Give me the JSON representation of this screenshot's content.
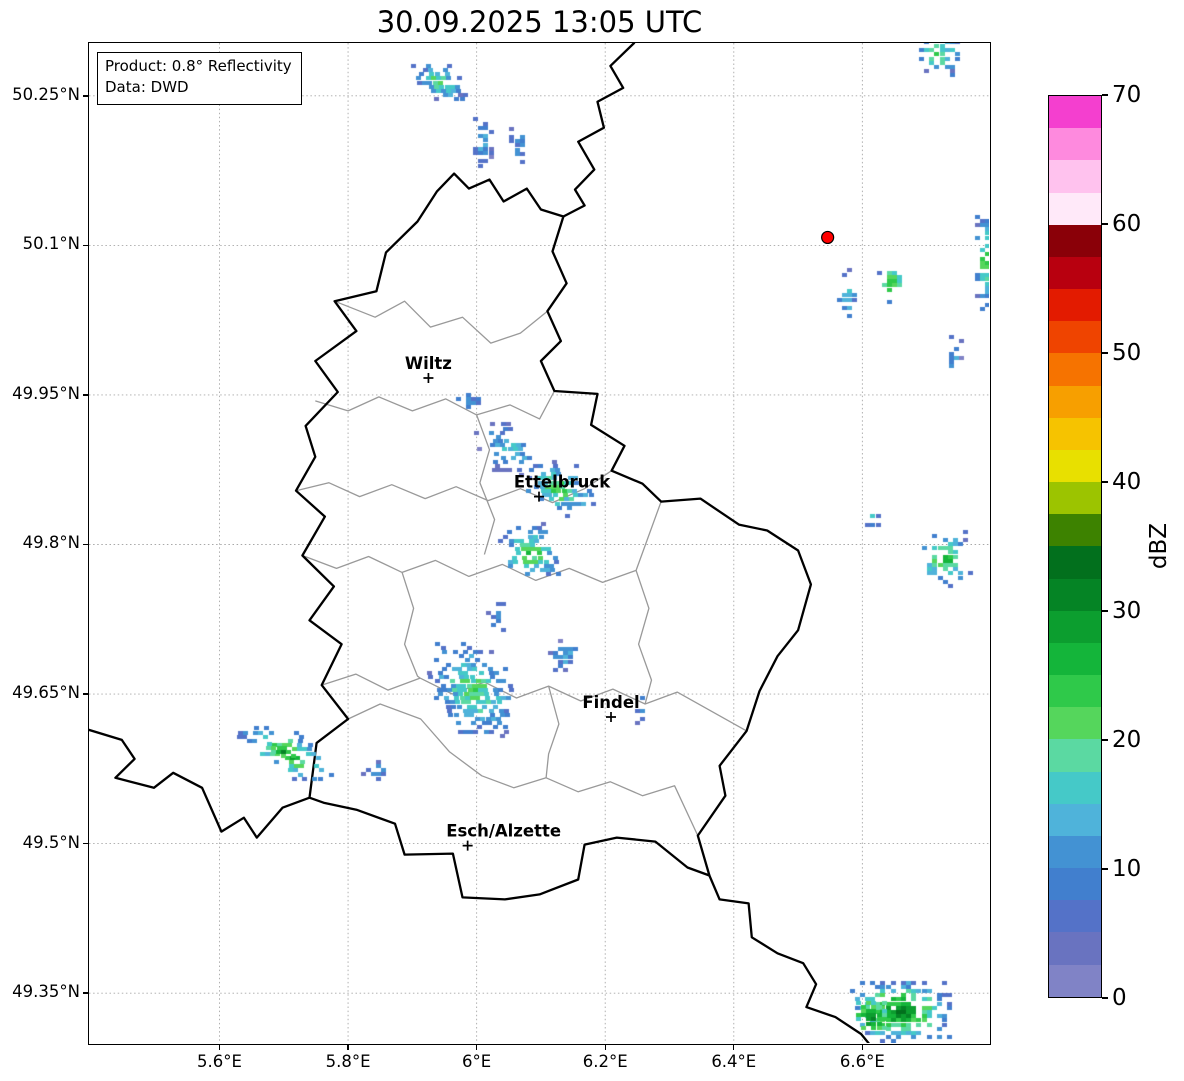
{
  "title": "30.09.2025 13:05 UTC",
  "legend": {
    "line1": "Product: 0.8° Reflectivity",
    "line2": "Data: DWD"
  },
  "colorbar": {
    "label": "dBZ",
    "min": 0,
    "max": 70,
    "band_dbz": 2.5,
    "ticks": [
      0,
      10,
      20,
      30,
      40,
      50,
      60,
      70
    ],
    "colors": [
      "#8083c6",
      "#6973c0",
      "#5472c8",
      "#417fce",
      "#4392d3",
      "#4fb3da",
      "#45c9c8",
      "#5bd9a2",
      "#55d65c",
      "#2fc94a",
      "#14b53a",
      "#0c9e2f",
      "#058425",
      "#02701d",
      "#3d8200",
      "#9cc400",
      "#e8e000",
      "#f6c300",
      "#f79f00",
      "#f67300",
      "#ef4400",
      "#e31b00",
      "#b8000f",
      "#8a0008",
      "#ffe9f9",
      "#ffc2ee",
      "#fe8ade",
      "#f43fcf"
    ]
  },
  "axes": {
    "extent": {
      "lon_min": 5.397,
      "lon_max": 6.797,
      "lat_min": 49.3,
      "lat_max": 50.303
    },
    "lat_ticks": [
      {
        "label": "50.25°N",
        "value": 50.25
      },
      {
        "label": "50.1°N",
        "value": 50.1
      },
      {
        "label": "49.95°N",
        "value": 49.95
      },
      {
        "label": "49.8°N",
        "value": 49.8
      },
      {
        "label": "49.65°N",
        "value": 49.65
      },
      {
        "label": "49.5°N",
        "value": 49.5
      },
      {
        "label": "49.35°N",
        "value": 49.35
      }
    ],
    "lon_ticks": [
      {
        "label": "5.6°E",
        "value": 5.6
      },
      {
        "label": "5.8°E",
        "value": 5.8
      },
      {
        "label": "6°E",
        "value": 6.0
      },
      {
        "label": "6.2°E",
        "value": 6.2
      },
      {
        "label": "6.4°E",
        "value": 6.4
      },
      {
        "label": "6.6°E",
        "value": 6.6
      }
    ]
  },
  "map": {
    "cities": [
      {
        "name": "Wiltz",
        "lon": 5.925,
        "lat": 49.967,
        "label_dx": 0
      },
      {
        "name": "Ettelbruck",
        "lon": 6.097,
        "lat": 49.848,
        "label_dx": 23
      },
      {
        "name": "Findel",
        "lon": 6.209,
        "lat": 49.627,
        "label_dx": 0
      },
      {
        "name": "Esch/Alzette",
        "lon": 5.986,
        "lat": 49.498,
        "label_dx": 36
      }
    ],
    "radar_site": {
      "lon": 6.546,
      "lat": 50.108,
      "color": "#ff0000"
    },
    "borders": {
      "country": [
        [
          5.965,
          50.172
        ],
        [
          5.988,
          50.157
        ],
        [
          6.02,
          50.166
        ],
        [
          6.042,
          50.144
        ],
        [
          6.078,
          50.157
        ],
        [
          6.1,
          50.136
        ],
        [
          6.135,
          50.129
        ],
        [
          6.118,
          50.094
        ],
        [
          6.14,
          50.062
        ],
        [
          6.11,
          50.034
        ],
        [
          6.131,
          50.004
        ],
        [
          6.1,
          49.984
        ],
        [
          6.121,
          49.954
        ],
        [
          6.188,
          49.951
        ],
        [
          6.178,
          49.92
        ],
        [
          6.23,
          49.899
        ],
        [
          6.21,
          49.874
        ],
        [
          6.258,
          49.861
        ],
        [
          6.287,
          49.843
        ],
        [
          6.348,
          49.846
        ],
        [
          6.408,
          49.82
        ],
        [
          6.452,
          49.814
        ],
        [
          6.5,
          49.794
        ],
        [
          6.52,
          49.76
        ],
        [
          6.5,
          49.714
        ],
        [
          6.468,
          49.688
        ],
        [
          6.44,
          49.653
        ],
        [
          6.42,
          49.613
        ],
        [
          6.378,
          49.578
        ],
        [
          6.387,
          49.548
        ],
        [
          6.344,
          49.508
        ],
        [
          6.362,
          49.468
        ],
        [
          6.328,
          49.476
        ],
        [
          6.278,
          49.502
        ],
        [
          6.218,
          49.506
        ],
        [
          6.168,
          49.499
        ],
        [
          6.158,
          49.464
        ],
        [
          6.098,
          49.449
        ],
        [
          6.044,
          49.444
        ],
        [
          5.978,
          49.446
        ],
        [
          5.963,
          49.49
        ],
        [
          5.888,
          49.489
        ],
        [
          5.873,
          49.52
        ],
        [
          5.813,
          49.534
        ],
        [
          5.762,
          49.541
        ],
        [
          5.74,
          49.546
        ],
        [
          5.751,
          49.601
        ],
        [
          5.8,
          49.625
        ],
        [
          5.759,
          49.659
        ],
        [
          5.79,
          49.7
        ],
        [
          5.74,
          49.724
        ],
        [
          5.778,
          49.758
        ],
        [
          5.729,
          49.789
        ],
        [
          5.764,
          49.828
        ],
        [
          5.719,
          49.854
        ],
        [
          5.749,
          49.888
        ],
        [
          5.734,
          49.919
        ],
        [
          5.784,
          49.953
        ],
        [
          5.749,
          49.984
        ],
        [
          5.813,
          50.014
        ],
        [
          5.779,
          50.044
        ],
        [
          5.844,
          50.054
        ],
        [
          5.859,
          50.093
        ],
        [
          5.908,
          50.124
        ],
        [
          5.938,
          50.154
        ]
      ],
      "other": [
        [
          [
            6.245,
            50.303
          ],
          [
            6.208,
            50.28
          ],
          [
            6.228,
            50.258
          ],
          [
            6.188,
            50.244
          ],
          [
            6.198,
            50.218
          ],
          [
            6.158,
            50.204
          ],
          [
            6.183,
            50.176
          ],
          [
            6.153,
            50.156
          ],
          [
            6.168,
            50.14
          ],
          [
            6.135,
            50.129
          ]
        ],
        [
          [
            5.397,
            49.614
          ],
          [
            5.448,
            49.604
          ],
          [
            5.468,
            49.585
          ],
          [
            5.438,
            49.566
          ],
          [
            5.498,
            49.556
          ],
          [
            5.528,
            49.571
          ],
          [
            5.573,
            49.556
          ],
          [
            5.603,
            49.512
          ],
          [
            5.638,
            49.526
          ],
          [
            5.658,
            49.506
          ],
          [
            5.698,
            49.536
          ],
          [
            5.74,
            49.546
          ]
        ],
        [
          [
            6.362,
            49.468
          ],
          [
            6.378,
            49.444
          ],
          [
            6.423,
            49.44
          ],
          [
            6.428,
            49.406
          ],
          [
            6.468,
            49.39
          ],
          [
            6.508,
            49.38
          ],
          [
            6.528,
            49.359
          ],
          [
            6.513,
            49.336
          ],
          [
            6.558,
            49.326
          ],
          [
            6.598,
            49.309
          ],
          [
            6.612,
            49.298
          ]
        ]
      ],
      "districts": [
        [
          [
            5.779,
            50.044
          ],
          [
            5.842,
            50.028
          ],
          [
            5.888,
            50.044
          ],
          [
            5.928,
            50.018
          ],
          [
            5.978,
            50.028
          ],
          [
            6.022,
            50.002
          ],
          [
            6.068,
            50.012
          ],
          [
            6.11,
            50.034
          ]
        ],
        [
          [
            5.749,
            49.944
          ],
          [
            5.8,
            49.934
          ],
          [
            5.848,
            49.948
          ],
          [
            5.9,
            49.934
          ],
          [
            5.952,
            49.946
          ],
          [
            6.0,
            49.93
          ],
          [
            6.052,
            49.94
          ],
          [
            6.098,
            49.926
          ],
          [
            6.121,
            49.954
          ]
        ],
        [
          [
            5.719,
            49.854
          ],
          [
            5.77,
            49.862
          ],
          [
            5.818,
            49.848
          ],
          [
            5.868,
            49.86
          ],
          [
            5.92,
            49.846
          ],
          [
            5.968,
            49.858
          ],
          [
            6.018,
            49.844
          ],
          [
            6.068,
            49.856
          ],
          [
            6.118,
            49.842
          ],
          [
            6.168,
            49.856
          ],
          [
            6.21,
            49.874
          ]
        ],
        [
          [
            5.729,
            49.789
          ],
          [
            5.782,
            49.776
          ],
          [
            5.832,
            49.788
          ],
          [
            5.884,
            49.772
          ],
          [
            5.936,
            49.784
          ],
          [
            5.988,
            49.768
          ],
          [
            6.04,
            49.78
          ],
          [
            6.092,
            49.764
          ],
          [
            6.144,
            49.776
          ],
          [
            6.196,
            49.762
          ],
          [
            6.248,
            49.774
          ],
          [
            6.287,
            49.843
          ]
        ],
        [
          [
            5.759,
            49.659
          ],
          [
            5.812,
            49.67
          ],
          [
            5.862,
            49.654
          ],
          [
            5.912,
            49.666
          ],
          [
            5.962,
            49.65
          ],
          [
            6.012,
            49.662
          ],
          [
            6.062,
            49.646
          ],
          [
            6.112,
            49.658
          ],
          [
            6.162,
            49.643
          ],
          [
            6.212,
            49.655
          ],
          [
            6.262,
            49.64
          ],
          [
            6.312,
            49.652
          ],
          [
            6.42,
            49.613
          ]
        ],
        [
          [
            5.8,
            49.625
          ],
          [
            5.85,
            49.64
          ],
          [
            5.913,
            49.625
          ],
          [
            5.958,
            49.592
          ],
          [
            6.008,
            49.568
          ],
          [
            6.058,
            49.556
          ],
          [
            6.108,
            49.566
          ],
          [
            6.158,
            49.552
          ],
          [
            6.208,
            49.562
          ],
          [
            6.258,
            49.548
          ],
          [
            6.308,
            49.558
          ],
          [
            6.344,
            49.508
          ]
        ],
        [
          [
            6.0,
            49.93
          ],
          [
            6.02,
            49.895
          ],
          [
            6.005,
            49.862
          ],
          [
            6.028,
            49.825
          ],
          [
            6.012,
            49.79
          ]
        ],
        [
          [
            6.248,
            49.774
          ],
          [
            6.268,
            49.736
          ],
          [
            6.252,
            49.7
          ],
          [
            6.272,
            49.664
          ],
          [
            6.262,
            49.64
          ]
        ],
        [
          [
            5.884,
            49.772
          ],
          [
            5.902,
            49.736
          ],
          [
            5.888,
            49.7
          ],
          [
            5.908,
            49.668
          ],
          [
            5.912,
            49.666
          ]
        ],
        [
          [
            6.112,
            49.658
          ],
          [
            6.128,
            49.62
          ],
          [
            6.112,
            49.59
          ],
          [
            6.108,
            49.566
          ]
        ]
      ]
    }
  },
  "chart_data": {
    "type": "radar_reflectivity_map",
    "unit": "dBZ",
    "echoes": [
      {
        "lon": 5.945,
        "lat": 50.263,
        "w": 0.075,
        "h": 0.038,
        "dbz_min": 6,
        "dbz_max": 22,
        "density": 1.1,
        "seed": 1,
        "skew": 0.3
      },
      {
        "lon": 6.012,
        "lat": 50.205,
        "w": 0.035,
        "h": 0.055,
        "dbz_min": 4,
        "dbz_max": 14,
        "density": 1.0,
        "seed": 2,
        "skew": 0
      },
      {
        "lon": 6.065,
        "lat": 50.198,
        "w": 0.028,
        "h": 0.042,
        "dbz_min": 4,
        "dbz_max": 12,
        "density": 0.95,
        "seed": 3,
        "skew": 0
      },
      {
        "lon": 6.718,
        "lat": 50.292,
        "w": 0.06,
        "h": 0.045,
        "dbz_min": 6,
        "dbz_max": 24,
        "density": 1.0,
        "seed": 4,
        "skew": 0
      },
      {
        "lon": 6.792,
        "lat": 50.085,
        "w": 0.035,
        "h": 0.1,
        "dbz_min": 6,
        "dbz_max": 27,
        "density": 1.0,
        "seed": 5,
        "skew": 0
      },
      {
        "lon": 6.578,
        "lat": 50.052,
        "w": 0.035,
        "h": 0.05,
        "dbz_min": 6,
        "dbz_max": 20,
        "density": 0.9,
        "seed": 6,
        "skew": 0
      },
      {
        "lon": 6.645,
        "lat": 50.062,
        "w": 0.045,
        "h": 0.05,
        "dbz_min": 6,
        "dbz_max": 26,
        "density": 0.9,
        "seed": 7,
        "skew": 0
      },
      {
        "lon": 6.742,
        "lat": 49.992,
        "w": 0.03,
        "h": 0.045,
        "dbz_min": 4,
        "dbz_max": 12,
        "density": 0.9,
        "seed": 8,
        "skew": 0
      },
      {
        "lon": 5.99,
        "lat": 49.944,
        "w": 0.045,
        "h": 0.025,
        "dbz_min": 4,
        "dbz_max": 12,
        "density": 0.9,
        "seed": 9,
        "skew": 0
      },
      {
        "lon": 6.05,
        "lat": 49.895,
        "w": 0.1,
        "h": 0.055,
        "dbz_min": 4,
        "dbz_max": 16,
        "density": 0.85,
        "seed": 10,
        "skew": 0.4
      },
      {
        "lon": 6.125,
        "lat": 49.855,
        "w": 0.1,
        "h": 0.06,
        "dbz_min": 6,
        "dbz_max": 24,
        "density": 0.95,
        "seed": 11,
        "skew": 0.3
      },
      {
        "lon": 6.085,
        "lat": 49.79,
        "w": 0.095,
        "h": 0.065,
        "dbz_min": 6,
        "dbz_max": 25,
        "density": 0.95,
        "seed": 12,
        "skew": 0.2
      },
      {
        "lon": 6.028,
        "lat": 49.732,
        "w": 0.028,
        "h": 0.045,
        "dbz_min": 4,
        "dbz_max": 12,
        "density": 0.9,
        "seed": 13,
        "skew": 0
      },
      {
        "lon": 5.995,
        "lat": 49.655,
        "w": 0.13,
        "h": 0.095,
        "dbz_min": 6,
        "dbz_max": 23,
        "density": 1.0,
        "seed": 14,
        "skew": 0.3
      },
      {
        "lon": 6.135,
        "lat": 49.688,
        "w": 0.065,
        "h": 0.035,
        "dbz_min": 4,
        "dbz_max": 14,
        "density": 0.85,
        "seed": 15,
        "skew": 0
      },
      {
        "lon": 6.252,
        "lat": 49.634,
        "w": 0.028,
        "h": 0.028,
        "dbz_min": 4,
        "dbz_max": 11,
        "density": 0.9,
        "seed": 16,
        "skew": 0
      },
      {
        "lon": 5.705,
        "lat": 49.59,
        "w": 0.1,
        "h": 0.055,
        "dbz_min": 8,
        "dbz_max": 30,
        "density": 0.95,
        "seed": 17,
        "skew": 0.9
      },
      {
        "lon": 5.7,
        "lat": 49.592,
        "w": 0.04,
        "h": 0.02,
        "dbz_min": 15,
        "dbz_max": 28,
        "density": 1.1,
        "seed": 23,
        "skew": 0.9
      },
      {
        "lon": 5.845,
        "lat": 49.573,
        "w": 0.05,
        "h": 0.022,
        "dbz_min": 4,
        "dbz_max": 12,
        "density": 0.9,
        "seed": 18,
        "skew": 0
      },
      {
        "lon": 6.66,
        "lat": 49.33,
        "w": 0.16,
        "h": 0.065,
        "dbz_min": 8,
        "dbz_max": 33,
        "density": 1.1,
        "seed": 19,
        "skew": 0
      },
      {
        "lon": 6.615,
        "lat": 49.325,
        "w": 0.05,
        "h": 0.035,
        "dbz_min": 18,
        "dbz_max": 33,
        "density": 1.2,
        "seed": 22,
        "skew": 0
      },
      {
        "lon": 6.617,
        "lat": 49.826,
        "w": 0.025,
        "h": 0.025,
        "dbz_min": 6,
        "dbz_max": 14,
        "density": 0.9,
        "seed": 20,
        "skew": 0
      },
      {
        "lon": 6.73,
        "lat": 49.785,
        "w": 0.09,
        "h": 0.06,
        "dbz_min": 6,
        "dbz_max": 26,
        "density": 0.9,
        "seed": 21,
        "skew": 0
      }
    ]
  }
}
